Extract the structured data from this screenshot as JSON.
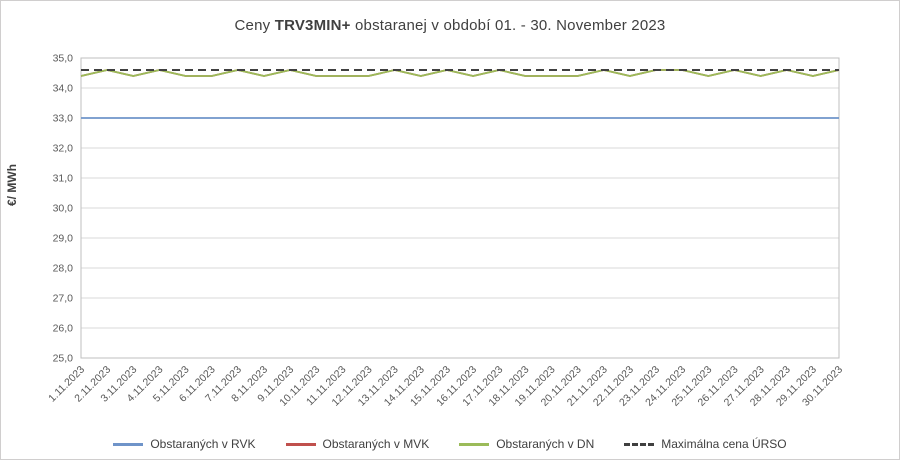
{
  "figure": {
    "title_prefix": "Ceny ",
    "title_bold": "TRV3MIN+",
    "title_suffix": " obstaranej v období 01. - 30. November 2023"
  },
  "chart_data": {
    "type": "line",
    "title": "Ceny TRV3MIN+ obstaranej v období 01. - 30. November 2023",
    "xlabel": "",
    "ylabel": "€/ MWh",
    "ylim": [
      25.0,
      35.0
    ],
    "ytick_step": 1.0,
    "ytick_labels": [
      "25,0",
      "26,0",
      "27,0",
      "28,0",
      "29,0",
      "30,0",
      "31,0",
      "32,0",
      "33,0",
      "34,0",
      "35,0"
    ],
    "grid": "horizontal",
    "gridline_color": "#d9d9d9",
    "plot_border_color": "#bfbfbf",
    "legend_position": "bottom",
    "x_labels": [
      "1.11.2023",
      "2.11.2023",
      "3.11.2023",
      "4.11.2023",
      "5.11.2023",
      "6.11.2023",
      "7.11.2023",
      "8.11.2023",
      "9.11.2023",
      "10.11.2023",
      "11.11.2023",
      "12.11.2023",
      "13.11.2023",
      "14.11.2023",
      "15.11.2023",
      "16.11.2023",
      "17.11.2023",
      "18.11.2023",
      "19.11.2023",
      "20.11.2023",
      "21.11.2023",
      "22.11.2023",
      "23.11.2023",
      "24.11.2023",
      "25.11.2023",
      "26.11.2023",
      "27.11.2023",
      "28.11.2023",
      "29.11.2023",
      "30.11.2023"
    ],
    "series": [
      {
        "name": "Obstaraných v RVK",
        "color": "#6f94c9",
        "style": "solid",
        "values": [
          33.0,
          33.0,
          33.0,
          33.0,
          33.0,
          33.0,
          33.0,
          33.0,
          33.0,
          33.0,
          33.0,
          33.0,
          33.0,
          33.0,
          33.0,
          33.0,
          33.0,
          33.0,
          33.0,
          33.0,
          33.0,
          33.0,
          33.0,
          33.0,
          33.0,
          33.0,
          33.0,
          33.0,
          33.0,
          33.0
        ]
      },
      {
        "name": "Obstaraných v MVK",
        "color": "#c0504d",
        "style": "solid",
        "values": [
          34.4,
          34.6,
          34.4,
          34.6,
          34.4,
          34.4,
          34.6,
          34.4,
          34.6,
          34.4,
          34.4,
          34.4,
          34.6,
          34.4,
          34.6,
          34.4,
          34.6,
          34.4,
          34.4,
          34.4,
          34.6,
          34.4,
          34.6,
          34.6,
          34.4,
          34.6,
          34.4,
          34.6,
          34.4,
          34.6
        ]
      },
      {
        "name": "Obstaraných v DN",
        "color": "#9bbb59",
        "style": "solid",
        "values": [
          34.4,
          34.6,
          34.4,
          34.6,
          34.4,
          34.4,
          34.6,
          34.4,
          34.6,
          34.4,
          34.4,
          34.4,
          34.6,
          34.4,
          34.6,
          34.4,
          34.6,
          34.4,
          34.4,
          34.4,
          34.6,
          34.4,
          34.6,
          34.6,
          34.4,
          34.6,
          34.4,
          34.6,
          34.4,
          34.6
        ]
      },
      {
        "name": "Maximálna cena ÚRSO",
        "color": "#404040",
        "style": "dashed",
        "values": [
          34.6,
          34.6,
          34.6,
          34.6,
          34.6,
          34.6,
          34.6,
          34.6,
          34.6,
          34.6,
          34.6,
          34.6,
          34.6,
          34.6,
          34.6,
          34.6,
          34.6,
          34.6,
          34.6,
          34.6,
          34.6,
          34.6,
          34.6,
          34.6,
          34.6,
          34.6,
          34.6,
          34.6,
          34.6,
          34.6
        ]
      }
    ]
  }
}
